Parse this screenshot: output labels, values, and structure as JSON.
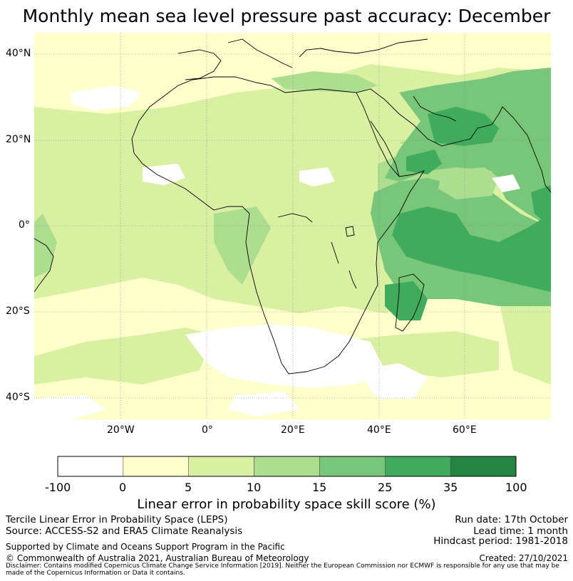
{
  "title": "Monthly mean sea level pressure past accuracy: December",
  "map": {
    "lat_labels": [
      "40°N",
      "20°N",
      "0°",
      "20°S",
      "40°S"
    ],
    "lon_labels": [
      "20°W",
      "0°",
      "20°E",
      "40°E",
      "60°E"
    ],
    "extent": {
      "lon": [
        -40,
        80
      ],
      "lat": [
        -45,
        45
      ]
    },
    "colors": {
      "ocean": "#ffffff",
      "pale": "#ffffcc",
      "light": "#d9f0a3",
      "mid": "#addd8e",
      "green": "#78c679",
      "dark": "#41ab5d",
      "darkest": "#238443",
      "coast": "#000000"
    }
  },
  "colorbar": {
    "ticks": [
      "-100",
      "0",
      "5",
      "10",
      "15",
      "25",
      "35",
      "100"
    ],
    "colors": [
      "#ffffff",
      "#ffffcc",
      "#d9f0a3",
      "#addd8e",
      "#78c679",
      "#41ab5d",
      "#238443"
    ],
    "label": "Linear error in probability space skill score (%)"
  },
  "footer": {
    "left1": "Tercile Linear Error in Probability Space (LEPS)",
    "left2": "Source: ACCESS-S2 and ERA5 Climate Reanalysis",
    "left3": "Supported by Climate and Oceans Support Program in the Pacific",
    "left4": "© Commonwealth of Australia 2021, Australian Bureau of Meteorology",
    "right1": "Run date: 17th October",
    "right2": "Lead time: 1 month",
    "right3": "Hindcast period: 1981-2018",
    "right4": "Created: 27/10/2021",
    "disclaimer": "Disclaimer: Contains modified Copernicus Climate Change Service Information [2019]. Neither the European Commission nor ECMWF is responsible for any use that may be made of the Copernicus Information or Data it contains."
  }
}
